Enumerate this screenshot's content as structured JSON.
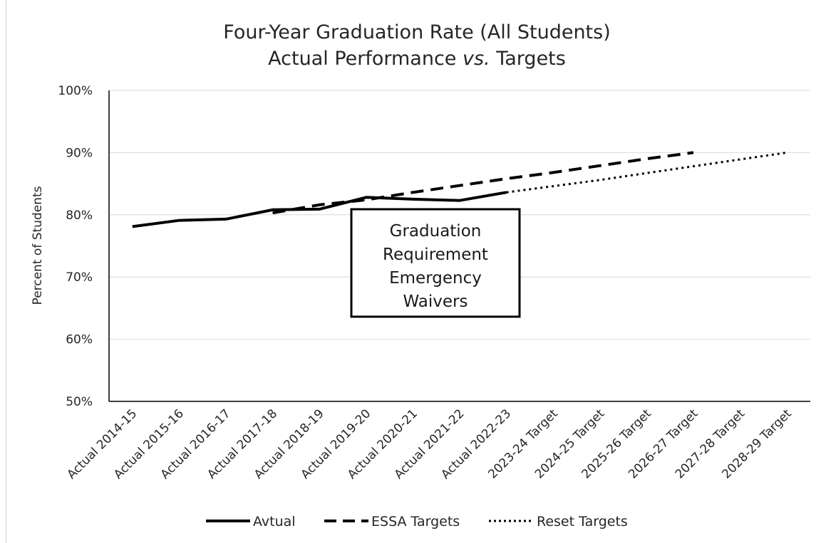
{
  "chart_data": {
    "type": "line",
    "title": "Four-Year Graduation Rate (All Students)",
    "subtitle_parts": [
      "Actual Performance ",
      "vs.",
      " Targets"
    ],
    "xlabel": "",
    "ylabel": "Percent of Students",
    "ylim": [
      50,
      100
    ],
    "yticks": [
      "50%",
      "60%",
      "70%",
      "80%",
      "90%",
      "100%"
    ],
    "ytick_values": [
      50,
      60,
      70,
      80,
      90,
      100
    ],
    "grid": "horizontal",
    "legend_position": "bottom",
    "categories": [
      "Actual 2014-15",
      "Actual 2015-16",
      "Actual 2016-17",
      "Actual 2017-18",
      "Actual 2018-19",
      "Actual 2019-20",
      "Actual 2020-21",
      "Actual 2021-22",
      "Actual 2022-23",
      "2023-24 Target",
      "2024-25 Target",
      "2025-26 Target",
      "2026-27 Target",
      "2027-28 Target",
      "2028-29 Target"
    ],
    "series": [
      {
        "name": "Avtual",
        "style": "solid",
        "color": "#000000",
        "values": [
          78.1,
          79.1,
          79.3,
          80.8,
          80.9,
          82.8,
          82.5,
          82.3,
          83.6,
          null,
          null,
          null,
          null,
          null,
          null
        ]
      },
      {
        "name": "ESSA Targets",
        "style": "dashed",
        "color": "#000000",
        "values": [
          null,
          null,
          null,
          80.3,
          81.6,
          82.4,
          83.6,
          84.7,
          85.8,
          86.8,
          87.9,
          89.0,
          90.0,
          null,
          null
        ]
      },
      {
        "name": "Reset Targets",
        "style": "dotted",
        "color": "#000000",
        "values": [
          null,
          null,
          null,
          null,
          null,
          null,
          null,
          null,
          83.6,
          84.6,
          85.6,
          86.7,
          87.8,
          88.9,
          90.0
        ]
      }
    ],
    "annotation": {
      "lines": [
        "Graduation",
        "Requirement",
        "Emergency",
        "Waivers"
      ]
    }
  }
}
